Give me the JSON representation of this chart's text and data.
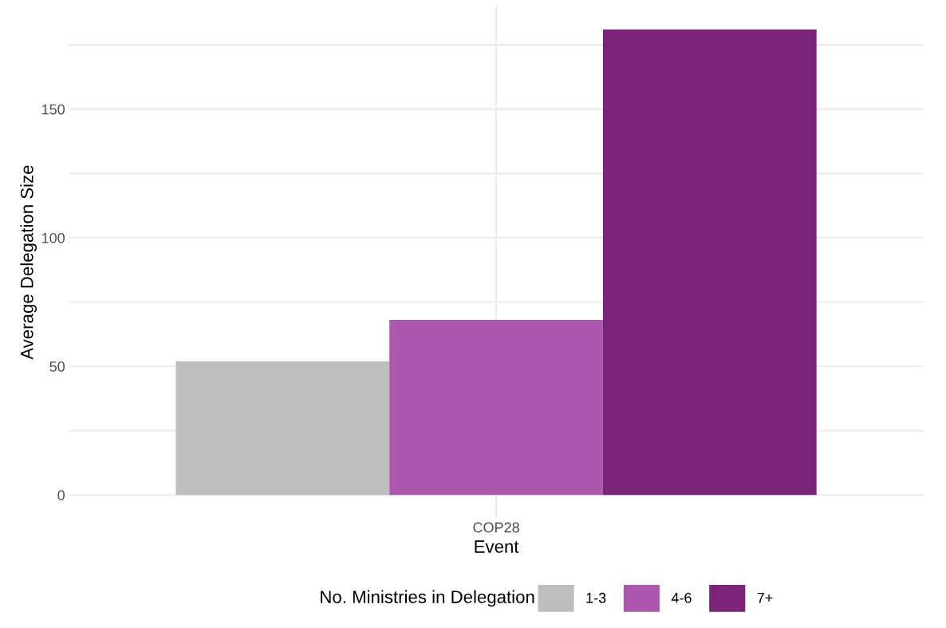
{
  "chart_data": {
    "type": "bar",
    "xlabel": "Event",
    "ylabel": "Average Delegation Size",
    "legend_title": "No. Ministries in Delegation",
    "categories": [
      "COP28"
    ],
    "series": [
      {
        "name": "1-3",
        "color": "#bebebe",
        "values": [
          52
        ]
      },
      {
        "name": "4-6",
        "color": "#ae57b0",
        "values": [
          68
        ]
      },
      {
        "name": "7+",
        "color": "#7b2279",
        "values": [
          181
        ]
      }
    ],
    "ylim": [
      -9,
      190
    ],
    "yticks": [
      0,
      {
        "value": 25,
        "label": null
      },
      50,
      {
        "value": 75,
        "label": null
      },
      100,
      {
        "value": 125,
        "label": null
      },
      150,
      {
        "value": 175,
        "label": null
      }
    ],
    "grid": true,
    "legend": "bottom"
  }
}
